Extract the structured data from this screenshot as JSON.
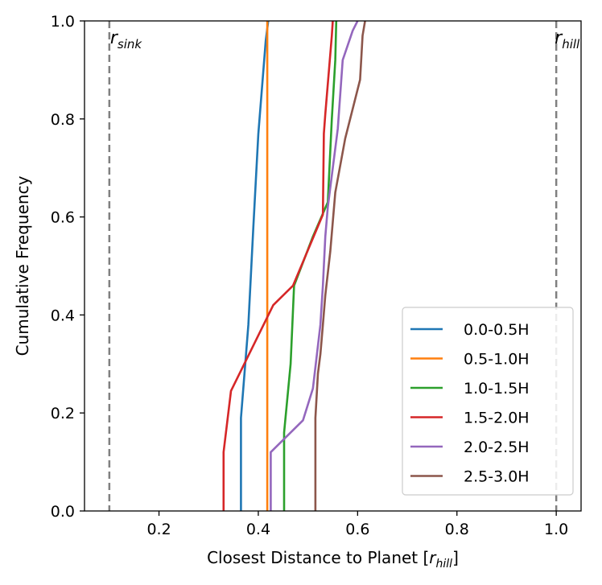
{
  "chart_data": {
    "type": "line",
    "title": "",
    "xlabel_main": "Closest Distance to Planet [",
    "xlabel_var": "r",
    "xlabel_sub": "hill",
    "xlabel_end": "]",
    "ylabel": "Cumulative Frequency",
    "xlim": [
      0.05,
      1.05
    ],
    "ylim": [
      0.0,
      1.0
    ],
    "xticks": [
      0.2,
      0.4,
      0.6,
      0.8,
      1.0
    ],
    "xtick_labels": [
      "0.2",
      "0.4",
      "0.6",
      "0.8",
      "1.0"
    ],
    "yticks": [
      0.0,
      0.2,
      0.4,
      0.6,
      0.8,
      1.0
    ],
    "ytick_labels": [
      "0.0",
      "0.2",
      "0.4",
      "0.6",
      "0.8",
      "1.0"
    ],
    "legend_position": "lower-right",
    "vlines": [
      {
        "x": 0.1,
        "label_var": "r",
        "label_sub": "sink",
        "color": "#808080",
        "style": "dashed"
      },
      {
        "x": 1.0,
        "label_var": "r",
        "label_sub": "hill",
        "color": "#808080",
        "style": "dashed"
      }
    ],
    "series": [
      {
        "name": "0.0-0.5H",
        "color": "#1f77b4",
        "points": [
          [
            0.365,
            0.0
          ],
          [
            0.365,
            0.19
          ],
          [
            0.38,
            0.38
          ],
          [
            0.39,
            0.58
          ],
          [
            0.4,
            0.77
          ],
          [
            0.415,
            0.96
          ],
          [
            0.42,
            1.0
          ]
        ]
      },
      {
        "name": "0.5-1.0H",
        "color": "#ff7f0e",
        "points": [
          [
            0.418,
            0.0
          ],
          [
            0.418,
            1.0
          ]
        ]
      },
      {
        "name": "1.0-1.5H",
        "color": "#2ca02c",
        "points": [
          [
            0.452,
            0.0
          ],
          [
            0.452,
            0.16
          ],
          [
            0.465,
            0.3
          ],
          [
            0.472,
            0.46
          ],
          [
            0.51,
            0.56
          ],
          [
            0.54,
            0.63
          ],
          [
            0.548,
            0.8
          ],
          [
            0.555,
            0.92
          ],
          [
            0.557,
            1.0
          ]
        ]
      },
      {
        "name": "1.5-2.0H",
        "color": "#d62728",
        "points": [
          [
            0.33,
            0.0
          ],
          [
            0.33,
            0.12
          ],
          [
            0.345,
            0.245
          ],
          [
            0.43,
            0.42
          ],
          [
            0.47,
            0.46
          ],
          [
            0.53,
            0.605
          ],
          [
            0.532,
            0.77
          ],
          [
            0.535,
            0.81
          ],
          [
            0.548,
            0.97
          ],
          [
            0.55,
            1.0
          ]
        ]
      },
      {
        "name": "2.0-2.5H",
        "color": "#9467bd",
        "points": [
          [
            0.425,
            0.0
          ],
          [
            0.425,
            0.12
          ],
          [
            0.49,
            0.185
          ],
          [
            0.51,
            0.25
          ],
          [
            0.525,
            0.38
          ],
          [
            0.53,
            0.46
          ],
          [
            0.535,
            0.56
          ],
          [
            0.54,
            0.62
          ],
          [
            0.56,
            0.78
          ],
          [
            0.57,
            0.92
          ],
          [
            0.59,
            0.98
          ],
          [
            0.6,
            1.0
          ]
        ]
      },
      {
        "name": "2.5-3.0H",
        "color": "#8c564b",
        "points": [
          [
            0.515,
            0.0
          ],
          [
            0.515,
            0.19
          ],
          [
            0.52,
            0.28
          ],
          [
            0.525,
            0.32
          ],
          [
            0.53,
            0.38
          ],
          [
            0.535,
            0.44
          ],
          [
            0.545,
            0.53
          ],
          [
            0.555,
            0.65
          ],
          [
            0.575,
            0.76
          ],
          [
            0.605,
            0.88
          ],
          [
            0.61,
            0.97
          ],
          [
            0.615,
            1.0
          ]
        ]
      }
    ]
  }
}
